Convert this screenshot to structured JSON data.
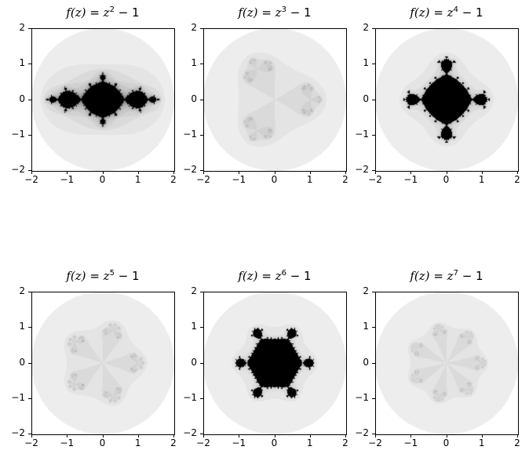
{
  "chart_data": [
    {
      "type": "heatmap",
      "title": {
        "lhs": "f(z)",
        "var": "z",
        "exp": "2",
        "rhs": "− 1"
      },
      "exponent": 2,
      "constant": -1,
      "xlim": [
        -2,
        2
      ],
      "ylim": [
        -2,
        2
      ],
      "xticks": [
        "−2",
        "−1",
        "0",
        "1",
        "2"
      ],
      "yticks": [
        "2",
        "1",
        "0",
        "−1",
        "−2"
      ],
      "colormap": "gray_r"
    },
    {
      "type": "heatmap",
      "title": {
        "lhs": "f(z)",
        "var": "z",
        "exp": "3",
        "rhs": "− 1"
      },
      "exponent": 3,
      "constant": -1,
      "xlim": [
        -2,
        2
      ],
      "ylim": [
        -2,
        2
      ],
      "xticks": [
        "−2",
        "−1",
        "0",
        "1",
        "2"
      ],
      "yticks": [
        "2",
        "1",
        "0",
        "−1",
        "−2"
      ],
      "colormap": "gray_r"
    },
    {
      "type": "heatmap",
      "title": {
        "lhs": "f(z)",
        "var": "z",
        "exp": "4",
        "rhs": "− 1"
      },
      "exponent": 4,
      "constant": -1,
      "xlim": [
        -2,
        2
      ],
      "ylim": [
        -2,
        2
      ],
      "xticks": [
        "−2",
        "−1",
        "0",
        "1",
        "2"
      ],
      "yticks": [
        "2",
        "1",
        "0",
        "−1",
        "−2"
      ],
      "colormap": "gray_r"
    },
    {
      "type": "heatmap",
      "title": {
        "lhs": "f(z)",
        "var": "z",
        "exp": "5",
        "rhs": "− 1"
      },
      "exponent": 5,
      "constant": -1,
      "xlim": [
        -2,
        2
      ],
      "ylim": [
        -2,
        2
      ],
      "xticks": [
        "−2",
        "−1",
        "0",
        "1",
        "2"
      ],
      "yticks": [
        "2",
        "1",
        "0",
        "−1",
        "−2"
      ],
      "colormap": "gray_r"
    },
    {
      "type": "heatmap",
      "title": {
        "lhs": "f(z)",
        "var": "z",
        "exp": "6",
        "rhs": "− 1"
      },
      "exponent": 6,
      "constant": -1,
      "xlim": [
        -2,
        2
      ],
      "ylim": [
        -2,
        2
      ],
      "xticks": [
        "−2",
        "−1",
        "0",
        "1",
        "2"
      ],
      "yticks": [
        "2",
        "1",
        "0",
        "−1",
        "−2"
      ],
      "colormap": "gray_r"
    },
    {
      "type": "heatmap",
      "title": {
        "lhs": "f(z)",
        "var": "z",
        "exp": "7",
        "rhs": "− 1"
      },
      "exponent": 7,
      "constant": -1,
      "xlim": [
        -2,
        2
      ],
      "ylim": [
        -2,
        2
      ],
      "xticks": [
        "−2",
        "−1",
        "0",
        "1",
        "2"
      ],
      "yticks": [
        "2",
        "1",
        "0",
        "−1",
        "−2"
      ],
      "colormap": "gray_r"
    }
  ]
}
